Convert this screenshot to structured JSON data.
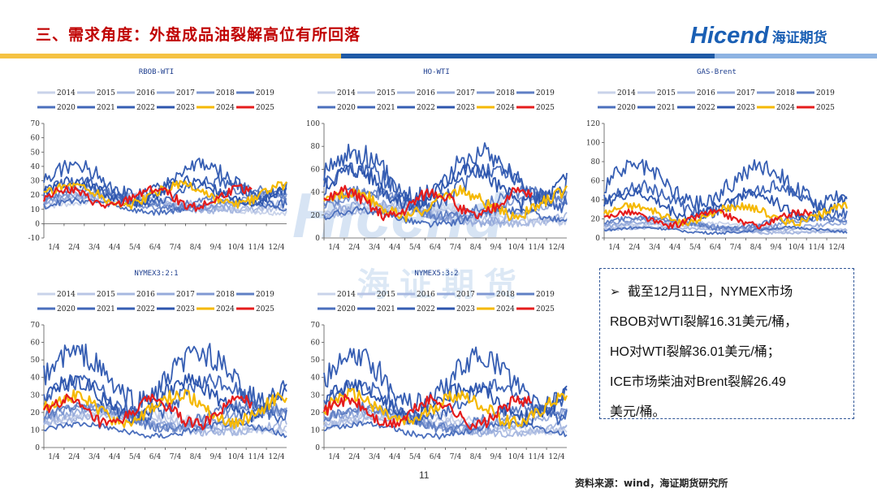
{
  "header": {
    "title": "三、需求角度：外盘成品油裂解高位有所回落"
  },
  "logo": {
    "en": "Hicend",
    "cn": "海证期货"
  },
  "watermark": {
    "en": "Hicend",
    "cn": "海证期货"
  },
  "colors": {
    "title": "#c00000",
    "brand": "#1a5fb4",
    "band1": "#f5c242",
    "band2": "#1f5aa6",
    "band3": "#8db3e2"
  },
  "months": [
    "1/4",
    "2/4",
    "3/4",
    "4/4",
    "5/4",
    "6/4",
    "7/4",
    "8/4",
    "9/4",
    "10/4",
    "11/4",
    "12/4"
  ],
  "legend": [
    {
      "name": "2014",
      "color": "#c9d3ea"
    },
    {
      "name": "2015",
      "color": "#b8c5e5"
    },
    {
      "name": "2016",
      "color": "#a7b8e0"
    },
    {
      "name": "2017",
      "color": "#96abdb"
    },
    {
      "name": "2018",
      "color": "#7f98d2"
    },
    {
      "name": "2019",
      "color": "#5f7fc4"
    },
    {
      "name": "2020",
      "color": "#4b6fbd"
    },
    {
      "name": "2021",
      "color": "#4066b8"
    },
    {
      "name": "2022",
      "color": "#365eb3"
    },
    {
      "name": "2023",
      "color": "#2d55ad"
    },
    {
      "name": "2024",
      "color": "#f5b800"
    },
    {
      "name": "2025",
      "color": "#e51c1c"
    }
  ],
  "chart_data": [
    {
      "type": "line",
      "title": "RBOB-WTI",
      "ylim": [
        -10,
        70
      ],
      "yticks": [
        -10,
        0,
        10,
        20,
        30,
        40,
        50,
        60,
        70
      ],
      "ytick_labels": [
        "-10",
        "0",
        "10",
        "20",
        "30",
        "40",
        "50",
        "60",
        "70"
      ],
      "shape": "rbob"
    },
    {
      "type": "line",
      "title": "HO-WTI",
      "ylim": [
        0,
        100
      ],
      "yticks": [
        0,
        20,
        40,
        60,
        80,
        100
      ],
      "ytick_labels": [
        "0",
        "20",
        "40",
        "60",
        "80",
        "100"
      ],
      "shape": "ho"
    },
    {
      "type": "line",
      "title": "GAS-Brent",
      "ylim": [
        0,
        120
      ],
      "yticks": [
        0,
        20,
        40,
        60,
        80,
        100,
        120
      ],
      "ytick_labels": [
        "0",
        "20",
        "40",
        "60",
        "80",
        "100",
        "120"
      ],
      "shape": "gas"
    },
    {
      "type": "line",
      "title": "NYMEX3:2:1",
      "ylim": [
        0,
        70
      ],
      "yticks": [
        0,
        10,
        20,
        30,
        40,
        50,
        60,
        70
      ],
      "ytick_labels": [
        "0",
        "10",
        "20",
        "30",
        "40",
        "50",
        "60",
        "70"
      ],
      "shape": "c321"
    },
    {
      "type": "line",
      "title": "NYMEX5:3:2",
      "ylim": [
        0,
        70
      ],
      "yticks": [
        0,
        10,
        20,
        30,
        40,
        50,
        60,
        70
      ],
      "ytick_labels": [
        "0",
        "10",
        "20",
        "30",
        "40",
        "50",
        "60",
        "70"
      ],
      "shape": "c532"
    }
  ],
  "note": {
    "lines": [
      "截至12月11日，NYMEX市场",
      "RBOB对WTI裂解16.31美元/桶，",
      "HO对WTI裂解36.01美元/桶；",
      "ICE市场柴油对Brent裂解26.49",
      "美元/桶。"
    ]
  },
  "footer": {
    "page": "11",
    "source": "资料来源：wind，海证期货研究所"
  }
}
